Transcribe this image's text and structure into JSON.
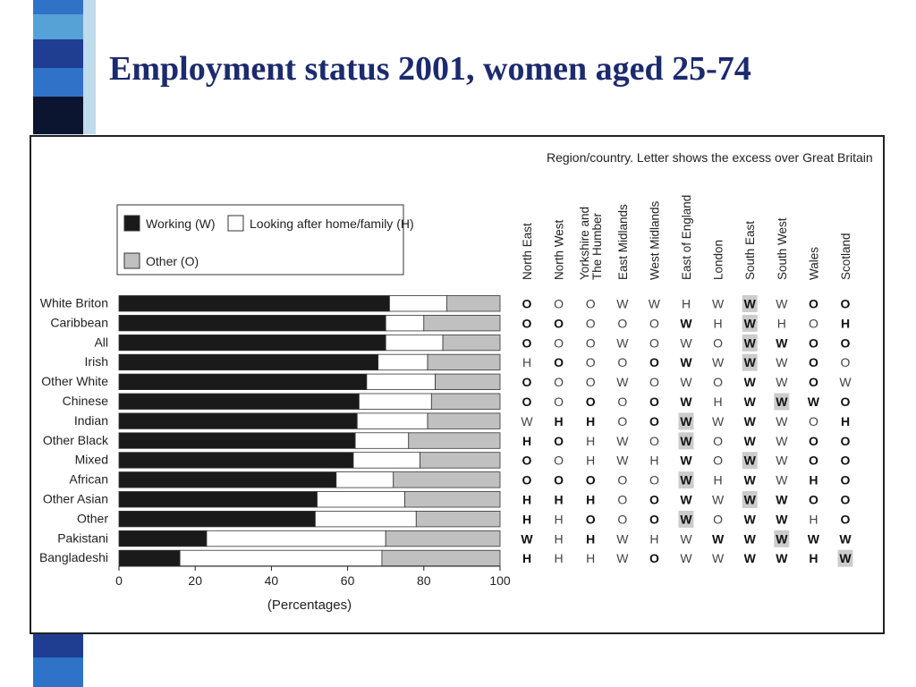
{
  "slide": {
    "title": "Employment status 2001, women aged 25-74",
    "accent_colors": [
      "#0b1530",
      "#1f3d91",
      "#2f73c8",
      "#56a1d6",
      "#7fb8d9"
    ]
  },
  "chart_data": [
    {
      "type": "bar",
      "orientation": "horizontal",
      "stacked": true,
      "title": "",
      "xlabel": "(Percentages)",
      "ylabel": "",
      "xlim": [
        0,
        100
      ],
      "xticks": [
        0,
        20,
        40,
        60,
        80,
        100
      ],
      "grid": false,
      "legend_position": "top-left",
      "categories": [
        "White Briton",
        "Caribbean",
        "All",
        "Irish",
        "Other White",
        "Chinese",
        "Indian",
        "Other Black",
        "Mixed",
        "African",
        "Other Asian",
        "Other",
        "Pakistani",
        "Bangladeshi"
      ],
      "series": [
        {
          "name": "Working (W)",
          "color": "#1a1a1a",
          "values": [
            71,
            70,
            70,
            68,
            65,
            63,
            62.5,
            62,
            61.5,
            57,
            52,
            51.5,
            23,
            16
          ]
        },
        {
          "name": "Looking after home/family (H)",
          "color": "#ffffff",
          "values": [
            15,
            10,
            15,
            13,
            18,
            19,
            18.5,
            14,
            17.5,
            15,
            23,
            26.5,
            47,
            53
          ]
        },
        {
          "name": "Other (O)",
          "color": "#c0c0c0",
          "values": [
            14,
            20,
            15,
            19,
            17,
            18,
            19,
            24,
            21,
            28,
            25,
            22,
            30,
            31
          ]
        }
      ]
    },
    {
      "type": "table",
      "title": "Region/country. Letter shows the excess over Great Britain",
      "columns": [
        "North East",
        "North West",
        "Yorkshire and The Humber",
        "East Midlands",
        "West Midlands",
        "East of England",
        "London",
        "South East",
        "South West",
        "Wales",
        "Scotland"
      ],
      "rows": [
        [
          "O",
          "O",
          "O",
          "W",
          "W",
          "H",
          "W",
          "W",
          "W",
          "O",
          "O"
        ],
        [
          "O",
          "O",
          "O",
          "O",
          "O",
          "W",
          "H",
          "W",
          "H",
          "O",
          "H"
        ],
        [
          "O",
          "O",
          "O",
          "W",
          "O",
          "W",
          "O",
          "W",
          "W",
          "O",
          "O"
        ],
        [
          "H",
          "O",
          "O",
          "O",
          "O",
          "W",
          "W",
          "W",
          "W",
          "O",
          "O"
        ],
        [
          "O",
          "O",
          "O",
          "W",
          "O",
          "W",
          "O",
          "W",
          "W",
          "O",
          "W"
        ],
        [
          "O",
          "O",
          "O",
          "O",
          "O",
          "W",
          "H",
          "W",
          "W",
          "W",
          "O"
        ],
        [
          "W",
          "H",
          "H",
          "O",
          "O",
          "W",
          "W",
          "W",
          "W",
          "O",
          "H"
        ],
        [
          "H",
          "O",
          "H",
          "W",
          "O",
          "W",
          "O",
          "W",
          "W",
          "O",
          "O"
        ],
        [
          "O",
          "O",
          "H",
          "W",
          "H",
          "W",
          "O",
          "W",
          "W",
          "O",
          "O"
        ],
        [
          "O",
          "O",
          "O",
          "O",
          "O",
          "W",
          "H",
          "W",
          "W",
          "H",
          "O"
        ],
        [
          "H",
          "H",
          "H",
          "O",
          "O",
          "W",
          "W",
          "W",
          "W",
          "O",
          "O"
        ],
        [
          "H",
          "H",
          "O",
          "O",
          "O",
          "W",
          "O",
          "W",
          "W",
          "H",
          "O"
        ],
        [
          "W",
          "H",
          "H",
          "W",
          "H",
          "W",
          "W",
          "W",
          "W",
          "W",
          "W"
        ],
        [
          "H",
          "H",
          "H",
          "W",
          "O",
          "W",
          "W",
          "W",
          "W",
          "H",
          "W"
        ]
      ],
      "bold": [
        [
          1,
          0,
          0,
          0,
          0,
          0,
          0,
          1,
          0,
          1,
          1
        ],
        [
          1,
          1,
          0,
          0,
          0,
          1,
          0,
          1,
          0,
          0,
          1
        ],
        [
          1,
          0,
          0,
          0,
          0,
          0,
          0,
          1,
          1,
          1,
          1
        ],
        [
          0,
          1,
          0,
          0,
          1,
          1,
          0,
          1,
          0,
          1,
          0
        ],
        [
          1,
          0,
          0,
          0,
          0,
          0,
          0,
          1,
          0,
          1,
          0
        ],
        [
          1,
          0,
          1,
          0,
          1,
          1,
          0,
          1,
          1,
          1,
          1
        ],
        [
          0,
          1,
          1,
          0,
          1,
          1,
          0,
          1,
          0,
          0,
          1
        ],
        [
          1,
          1,
          0,
          0,
          0,
          1,
          0,
          1,
          0,
          1,
          1
        ],
        [
          1,
          0,
          0,
          0,
          0,
          1,
          0,
          1,
          0,
          1,
          1
        ],
        [
          1,
          1,
          1,
          0,
          0,
          1,
          0,
          1,
          0,
          1,
          1
        ],
        [
          1,
          1,
          1,
          0,
          1,
          1,
          0,
          1,
          1,
          1,
          1
        ],
        [
          1,
          0,
          1,
          0,
          1,
          1,
          0,
          1,
          1,
          0,
          1
        ],
        [
          1,
          0,
          1,
          0,
          0,
          0,
          1,
          1,
          1,
          1,
          1
        ],
        [
          1,
          0,
          0,
          0,
          1,
          0,
          0,
          1,
          1,
          1,
          1
        ]
      ],
      "shaded": [
        [
          0,
          0,
          0,
          0,
          0,
          0,
          0,
          1,
          0,
          0,
          0
        ],
        [
          0,
          0,
          0,
          0,
          0,
          0,
          0,
          1,
          0,
          0,
          0
        ],
        [
          0,
          0,
          0,
          0,
          0,
          0,
          0,
          1,
          0,
          0,
          0
        ],
        [
          0,
          0,
          0,
          0,
          0,
          0,
          0,
          1,
          0,
          0,
          0
        ],
        [
          0,
          0,
          0,
          0,
          0,
          0,
          0,
          0,
          0,
          0,
          0
        ],
        [
          0,
          0,
          0,
          0,
          0,
          0,
          0,
          0,
          1,
          0,
          0
        ],
        [
          0,
          0,
          0,
          0,
          0,
          1,
          0,
          0,
          0,
          0,
          0
        ],
        [
          0,
          0,
          0,
          0,
          0,
          1,
          0,
          0,
          0,
          0,
          0
        ],
        [
          0,
          0,
          0,
          0,
          0,
          0,
          0,
          1,
          0,
          0,
          0
        ],
        [
          0,
          0,
          0,
          0,
          0,
          1,
          0,
          0,
          0,
          0,
          0
        ],
        [
          0,
          0,
          0,
          0,
          0,
          0,
          0,
          1,
          0,
          0,
          0
        ],
        [
          0,
          0,
          0,
          0,
          0,
          1,
          0,
          0,
          0,
          0,
          0
        ],
        [
          0,
          0,
          0,
          0,
          0,
          0,
          0,
          0,
          1,
          0,
          0
        ],
        [
          0,
          0,
          0,
          0,
          0,
          0,
          0,
          0,
          0,
          0,
          1
        ]
      ],
      "shade_color": "#cccccc"
    }
  ]
}
